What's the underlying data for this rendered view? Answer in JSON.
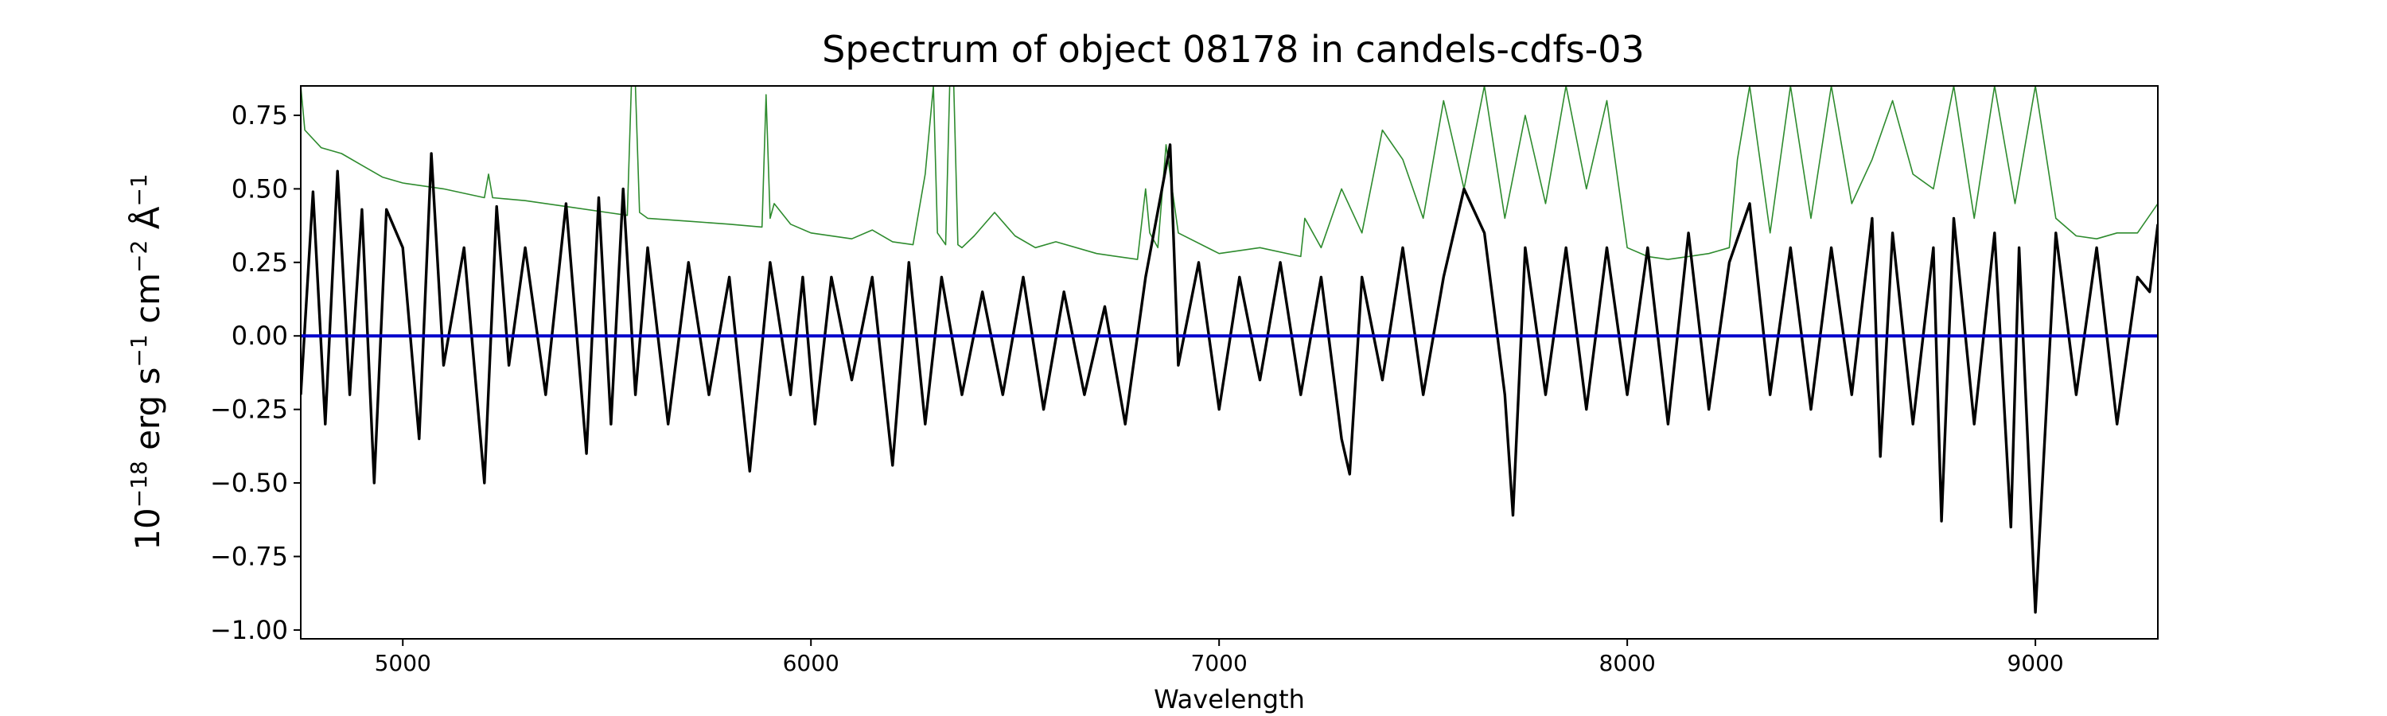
{
  "chart_data": {
    "type": "line",
    "title": "Spectrum of object 08178 in candels-cdfs-03",
    "xlabel": "Wavelength",
    "ylabel": "10−18 erg s−1 cm−2 Å−1",
    "xlim": [
      4750,
      9300
    ],
    "ylim": [
      -1.03,
      0.85
    ],
    "x_ticks": [
      5000,
      6000,
      7000,
      8000,
      9000
    ],
    "x_tick_labels": [
      "5000",
      "6000",
      "7000",
      "8000",
      "9000"
    ],
    "y_ticks": [
      0.75,
      0.5,
      0.25,
      0.0,
      -0.25,
      -0.5,
      -0.75,
      -1.0
    ],
    "y_tick_labels": [
      "0.75",
      "0.50",
      "0.25",
      "0.00",
      "−0.25",
      "−0.50",
      "−0.75",
      "−1.00"
    ],
    "grid": false,
    "colors": {
      "flux": "#000000",
      "error": "#2e8b2e",
      "model": "#0000cc"
    },
    "series": [
      {
        "role": "flux",
        "x": [
          4750,
          4780,
          4810,
          4840,
          4870,
          4900,
          4930,
          4960,
          5000,
          5040,
          5070,
          5100,
          5150,
          5200,
          5230,
          5260,
          5300,
          5350,
          5400,
          5450,
          5480,
          5510,
          5540,
          5570,
          5600,
          5650,
          5700,
          5750,
          5800,
          5850,
          5900,
          5950,
          5980,
          6010,
          6050,
          6100,
          6150,
          6200,
          6240,
          6280,
          6320,
          6370,
          6420,
          6470,
          6520,
          6570,
          6620,
          6670,
          6720,
          6770,
          6820,
          6860,
          6880,
          6900,
          6950,
          7000,
          7050,
          7100,
          7150,
          7200,
          7250,
          7300,
          7320,
          7350,
          7400,
          7450,
          7500,
          7550,
          7600,
          7650,
          7700,
          7720,
          7750,
          7800,
          7850,
          7900,
          7950,
          8000,
          8050,
          8100,
          8150,
          8200,
          8250,
          8300,
          8350,
          8400,
          8450,
          8500,
          8550,
          8600,
          8620,
          8650,
          8700,
          8750,
          8770,
          8800,
          8850,
          8900,
          8940,
          8960,
          9000,
          9050,
          9100,
          9150,
          9200,
          9250,
          9280,
          9300
        ],
        "y": [
          -0.2,
          0.49,
          -0.3,
          0.56,
          -0.2,
          0.43,
          -0.5,
          0.43,
          0.3,
          -0.35,
          0.62,
          -0.1,
          0.3,
          -0.5,
          0.44,
          -0.1,
          0.3,
          -0.2,
          0.45,
          -0.4,
          0.47,
          -0.3,
          0.5,
          -0.2,
          0.3,
          -0.3,
          0.25,
          -0.2,
          0.2,
          -0.46,
          0.25,
          -0.2,
          0.2,
          -0.3,
          0.2,
          -0.15,
          0.2,
          -0.44,
          0.25,
          -0.3,
          0.2,
          -0.2,
          0.15,
          -0.2,
          0.2,
          -0.25,
          0.15,
          -0.2,
          0.1,
          -0.3,
          0.2,
          0.5,
          0.65,
          -0.1,
          0.25,
          -0.25,
          0.2,
          -0.15,
          0.25,
          -0.2,
          0.2,
          -0.35,
          -0.47,
          0.2,
          -0.15,
          0.3,
          -0.2,
          0.2,
          0.5,
          0.35,
          -0.2,
          -0.61,
          0.3,
          -0.2,
          0.3,
          -0.25,
          0.3,
          -0.2,
          0.3,
          -0.3,
          0.35,
          -0.25,
          0.25,
          0.45,
          -0.2,
          0.3,
          -0.25,
          0.3,
          -0.2,
          0.4,
          -0.41,
          0.35,
          -0.3,
          0.3,
          -0.63,
          0.4,
          -0.3,
          0.35,
          -0.65,
          0.3,
          -0.94,
          0.35,
          -0.2,
          0.3,
          -0.3,
          0.2,
          0.15,
          0.38
        ]
      },
      {
        "role": "error",
        "x": [
          4750,
          4760,
          4800,
          4850,
          4900,
          4950,
          5000,
          5100,
          5200,
          5210,
          5220,
          5300,
          5400,
          5500,
          5550,
          5560,
          5570,
          5580,
          5600,
          5700,
          5800,
          5880,
          5890,
          5900,
          5910,
          5950,
          6000,
          6100,
          6150,
          6200,
          6250,
          6280,
          6300,
          6310,
          6330,
          6340,
          6350,
          6360,
          6370,
          6400,
          6450,
          6500,
          6550,
          6600,
          6700,
          6800,
          6820,
          6830,
          6850,
          6870,
          6900,
          7000,
          7100,
          7200,
          7210,
          7250,
          7300,
          7350,
          7400,
          7450,
          7500,
          7550,
          7600,
          7650,
          7700,
          7750,
          7800,
          7850,
          7900,
          7950,
          8000,
          8050,
          8100,
          8150,
          8200,
          8250,
          8270,
          8300,
          8350,
          8400,
          8450,
          8500,
          8550,
          8600,
          8650,
          8700,
          8750,
          8800,
          8850,
          8900,
          8950,
          9000,
          9050,
          9100,
          9150,
          9200,
          9250,
          9300
        ],
        "y": [
          0.85,
          0.7,
          0.64,
          0.62,
          0.58,
          0.54,
          0.52,
          0.5,
          0.47,
          0.55,
          0.47,
          0.46,
          0.44,
          0.42,
          0.41,
          0.85,
          0.85,
          0.42,
          0.4,
          0.39,
          0.38,
          0.37,
          0.82,
          0.4,
          0.45,
          0.38,
          0.35,
          0.33,
          0.36,
          0.32,
          0.31,
          0.55,
          0.85,
          0.35,
          0.31,
          0.85,
          0.85,
          0.31,
          0.3,
          0.34,
          0.42,
          0.34,
          0.3,
          0.32,
          0.28,
          0.26,
          0.5,
          0.35,
          0.3,
          0.65,
          0.35,
          0.28,
          0.3,
          0.27,
          0.4,
          0.3,
          0.5,
          0.35,
          0.7,
          0.6,
          0.4,
          0.8,
          0.5,
          0.85,
          0.4,
          0.75,
          0.45,
          0.85,
          0.5,
          0.8,
          0.3,
          0.27,
          0.26,
          0.27,
          0.28,
          0.3,
          0.6,
          0.85,
          0.35,
          0.85,
          0.4,
          0.85,
          0.45,
          0.6,
          0.8,
          0.55,
          0.5,
          0.85,
          0.4,
          0.85,
          0.45,
          0.85,
          0.4,
          0.34,
          0.33,
          0.35,
          0.35,
          0.45
        ]
      },
      {
        "role": "model",
        "x": [
          4750,
          9300
        ],
        "y": [
          0.0,
          0.0
        ]
      }
    ]
  }
}
